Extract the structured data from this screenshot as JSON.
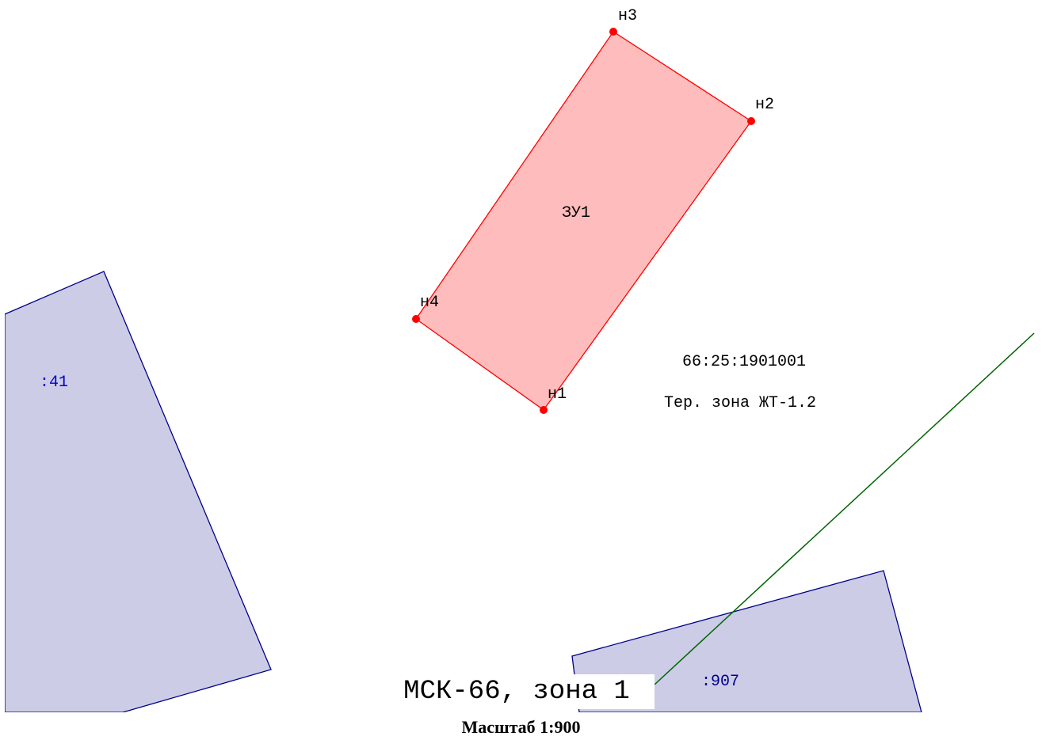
{
  "map": {
    "parcel": {
      "label": "ЗУ1",
      "fill_color": "#ffbcbc",
      "stroke_color": "#ff0000",
      "vertices": [
        {
          "name": "н1"
        },
        {
          "name": "н2"
        },
        {
          "name": "н3"
        },
        {
          "name": "н4"
        }
      ]
    },
    "neighbors": [
      {
        "label": ":41",
        "fill_color": "#cccce6",
        "stroke_color": "#00008b",
        "label_color": "#0000cc"
      },
      {
        "label": ":907",
        "fill_color": "#cccce6",
        "stroke_color": "#00008b",
        "label_color": "#00008b"
      }
    ],
    "zone_boundary_color": "#006400",
    "quarter_number": "66:25:1901001",
    "territorial_zone": "Тер. зона ЖТ-1.2"
  },
  "footer": {
    "crs": "МСК-66, зона 1",
    "scale": "Масштаб 1:900"
  }
}
